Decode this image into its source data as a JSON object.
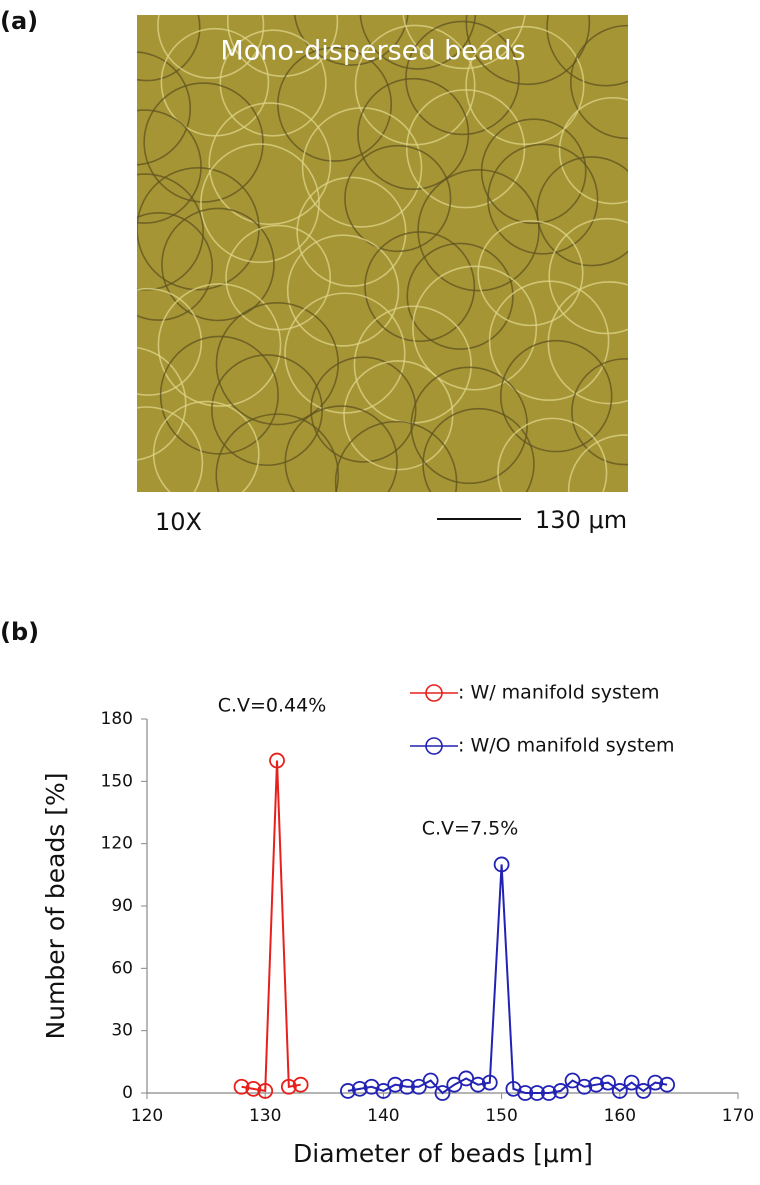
{
  "panel_a": {
    "label": "(a)",
    "image_caption": "Mono-dispersed beads",
    "magnification": "10X",
    "scale_bar": "130 μm"
  },
  "panel_b_label": "(b)",
  "chart_data": {
    "type": "line",
    "x_label": "Diameter of beads [μm]",
    "y_label": "Number of beads [%]",
    "xlim": [
      120,
      170
    ],
    "xticks": [
      120,
      130,
      140,
      150,
      160,
      170
    ],
    "ylim": [
      0,
      180
    ],
    "yticks": [
      0,
      30,
      60,
      90,
      120,
      150,
      180
    ],
    "grid": false,
    "legend": "upper right",
    "annotations": [
      "C.V=0.44%",
      "C.V=7.5%"
    ],
    "series": [
      {
        "name": ": W/  manifold system",
        "color": "#e8201c",
        "x": [
          128,
          129,
          130,
          131,
          132,
          133
        ],
        "values": [
          3,
          2,
          1,
          160,
          3,
          4
        ]
      },
      {
        "name": ": W/O manifold system",
        "color": "#2222b4",
        "x": [
          137,
          138,
          139,
          140,
          141,
          142,
          143,
          144,
          145,
          146,
          147,
          148,
          149,
          150,
          151,
          152,
          153,
          154,
          155,
          156,
          157,
          158,
          159,
          160,
          161,
          162,
          163,
          164
        ],
        "values": [
          1,
          2,
          3,
          1,
          4,
          3,
          3,
          6,
          0,
          4,
          7,
          4,
          5,
          110,
          2,
          0,
          0,
          0,
          1,
          6,
          3,
          4,
          5,
          1,
          5,
          1,
          5,
          4
        ]
      }
    ]
  }
}
